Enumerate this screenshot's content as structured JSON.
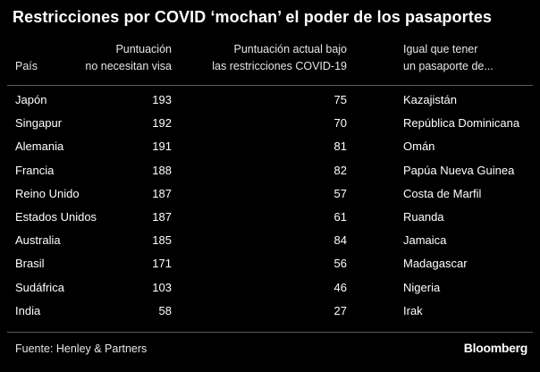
{
  "title": "Restricciones por  COVID  ‘mochan’ el poder de los pasaportes",
  "headers": {
    "country": "País",
    "visa_score": "Puntuación\nno necesitan visa",
    "covid_score": "Puntuación actual bajo\nlas restricciones COVID-19",
    "equivalent": "Igual que tener\nun pasaporte de..."
  },
  "chart_data": {
    "type": "table",
    "columns": [
      "País",
      "Puntuación no necesitan visa",
      "Puntuación actual bajo las restricciones COVID-19",
      "Igual que tener un pasaporte de..."
    ],
    "rows": [
      [
        "Japón",
        "193",
        "75",
        "Kazajistán"
      ],
      [
        "Singapur",
        "192",
        "70",
        "República Dominicana"
      ],
      [
        "Alemania",
        "191",
        "81",
        "Omán"
      ],
      [
        "Francia",
        "188",
        "82",
        "Papúa Nueva Guinea"
      ],
      [
        "Reino Unido",
        "187",
        "57",
        "Costa de Marfil"
      ],
      [
        "Estados Unidos",
        "187",
        "61",
        "Ruanda"
      ],
      [
        "Australia",
        "185",
        "84",
        "Jamaica"
      ],
      [
        "Brasil",
        "171",
        "56",
        "Madagascar"
      ],
      [
        "Sudáfrica",
        "103",
        "46",
        "Nigeria"
      ],
      [
        "India",
        "58",
        "27",
        "Irak"
      ]
    ]
  },
  "source": "Fuente: Henley & Partners",
  "brand": "Bloomberg",
  "colors": {
    "background": "#000000",
    "text": "#ffffff",
    "rule": "#5a5a5a"
  }
}
